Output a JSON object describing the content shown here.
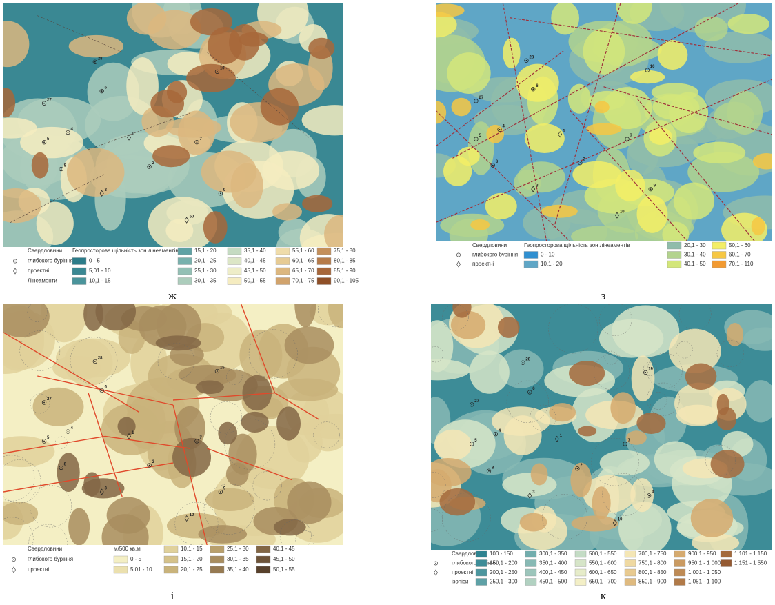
{
  "panels": [
    {
      "caption": "ж",
      "wells": [
        "28",
        "10",
        "6",
        "27",
        "4",
        "1",
        "5",
        "7",
        "8",
        "2",
        "3",
        "9",
        "50"
      ],
      "legend": {
        "heading": "Свердловини",
        "items": [
          "глибокого буріння",
          "проектні",
          "Лінеаменти"
        ],
        "scale_title": "Геопросторова щільність зон лінеаментів",
        "classes": [
          {
            "label": "0 - 5",
            "color": "#2c7c89"
          },
          {
            "label": "5,01 - 10",
            "color": "#3a8893"
          },
          {
            "label": "10,1 - 15",
            "color": "#4a949b"
          },
          {
            "label": "15,1 - 20",
            "color": "#5fa2a5"
          },
          {
            "label": "20,1 - 25",
            "color": "#78b1ad"
          },
          {
            "label": "25,1 - 30",
            "color": "#93c0b5"
          },
          {
            "label": "30,1 - 35",
            "color": "#accdbc"
          },
          {
            "label": "35,1 - 40",
            "color": "#c5dbc2"
          },
          {
            "label": "40,1 - 45",
            "color": "#dce6c6"
          },
          {
            "label": "45,1 - 50",
            "color": "#eeedc8"
          },
          {
            "label": "50,1 - 55",
            "color": "#f5ecc0"
          },
          {
            "label": "55,1 - 60",
            "color": "#efdcaa"
          },
          {
            "label": "60,1 - 65",
            "color": "#e6cb94"
          },
          {
            "label": "65,1 - 70",
            "color": "#dcb77f"
          },
          {
            "label": "70,1 - 75",
            "color": "#d1a36c"
          },
          {
            "label": "75,1 - 80",
            "color": "#c48f5a"
          },
          {
            "label": "80,1 - 85",
            "color": "#b67b49"
          },
          {
            "label": "85,1 - 90",
            "color": "#a7673a"
          },
          {
            "label": "90,1 - 105",
            "color": "#8f4f27"
          }
        ]
      }
    },
    {
      "caption": "з",
      "wells": [
        "28",
        "10",
        "6",
        "27",
        "4",
        "1",
        "5",
        "7",
        "8",
        "2",
        "3",
        "9",
        "10"
      ],
      "legend": {
        "heading": "Свердловини",
        "items": [
          "глибокого буріння",
          "проектні"
        ],
        "scale_title": "Геопросторова щільність зон лінеаментів",
        "classes": [
          {
            "label": "0 - 10",
            "color": "#2f8fd0"
          },
          {
            "label": "10,1 - 20",
            "color": "#5fa6c6"
          },
          {
            "label": "20,1 - 30",
            "color": "#8fbcaa"
          },
          {
            "label": "30,1 - 40",
            "color": "#b3d38d"
          },
          {
            "label": "40,1 - 50",
            "color": "#d3e67a"
          },
          {
            "label": "50,1 - 60",
            "color": "#f3ee66"
          },
          {
            "label": "60,1 - 70",
            "color": "#f6c743"
          },
          {
            "label": "70,1 - 110",
            "color": "#f29a31"
          }
        ]
      }
    },
    {
      "caption": "і",
      "wells": [
        "28",
        "15",
        "6",
        "27",
        "4",
        "1",
        "5",
        "7",
        "8",
        "2",
        "3",
        "9",
        "10"
      ],
      "legend": {
        "heading": "Свердловини",
        "items": [
          "глибокого буріння",
          "проектні"
        ],
        "scale_title": "м/500 кв.м",
        "classes": [
          {
            "label": "0 - 5",
            "color": "#f4efc4"
          },
          {
            "label": "5,01 - 10",
            "color": "#ebe0ae"
          },
          {
            "label": "10,1 - 15",
            "color": "#e0d19b"
          },
          {
            "label": "15,1 - 20",
            "color": "#d5c28a"
          },
          {
            "label": "20,1 - 25",
            "color": "#c9b37b"
          },
          {
            "label": "25,1 - 30",
            "color": "#b9a06c"
          },
          {
            "label": "30,1 - 35",
            "color": "#a88d5f"
          },
          {
            "label": "35,1 - 40",
            "color": "#967a52"
          },
          {
            "label": "40,1 - 45",
            "color": "#826645"
          },
          {
            "label": "45,1 - 50",
            "color": "#6d5338"
          },
          {
            "label": "50,1 - 55",
            "color": "#58412c"
          }
        ]
      }
    },
    {
      "caption": "к",
      "wells": [
        "28",
        "19",
        "6",
        "27",
        "4",
        "1",
        "5",
        "7",
        "8",
        "2",
        "3",
        "9",
        "10"
      ],
      "legend": {
        "heading": "Свердловини",
        "items": [
          "глибокого буріння",
          "проектні",
          "ізопіси"
        ],
        "classes": [
          {
            "label": "100 - 150",
            "color": "#2f8390"
          },
          {
            "label": "150,1 - 200",
            "color": "#3d8c97"
          },
          {
            "label": "200,1 - 250",
            "color": "#4c969e"
          },
          {
            "label": "250,1 - 300",
            "color": "#5ea1a6"
          },
          {
            "label": "300,1 - 350",
            "color": "#72adad"
          },
          {
            "label": "350,1 - 400",
            "color": "#87b9b4"
          },
          {
            "label": "400,1 - 450",
            "color": "#9cc5bb"
          },
          {
            "label": "450,1 - 500",
            "color": "#b1d1c1"
          },
          {
            "label": "500,1 - 550",
            "color": "#c4dcc5"
          },
          {
            "label": "550,1 - 600",
            "color": "#d6e5c8"
          },
          {
            "label": "600,1 - 650",
            "color": "#e6ecc9"
          },
          {
            "label": "650,1 - 700",
            "color": "#f3efc6"
          },
          {
            "label": "700,1 - 750",
            "color": "#f4e6b5"
          },
          {
            "label": "750,1 - 800",
            "color": "#efd9a2"
          },
          {
            "label": "800,1 - 850",
            "color": "#e8ca90"
          },
          {
            "label": "850,1 - 900",
            "color": "#dfba7f"
          },
          {
            "label": "900,1 - 950",
            "color": "#d5aa6f"
          },
          {
            "label": "950,1 - 1 000",
            "color": "#ca9a61"
          },
          {
            "label": "1 001 - 1 050",
            "color": "#be8a54"
          },
          {
            "label": "1 051 - 1 100",
            "color": "#b17a48"
          },
          {
            "label": "1 101 - 1 150",
            "color": "#a36a3d"
          },
          {
            "label": "1 151 - 1 550",
            "color": "#945a32"
          }
        ]
      }
    }
  ]
}
